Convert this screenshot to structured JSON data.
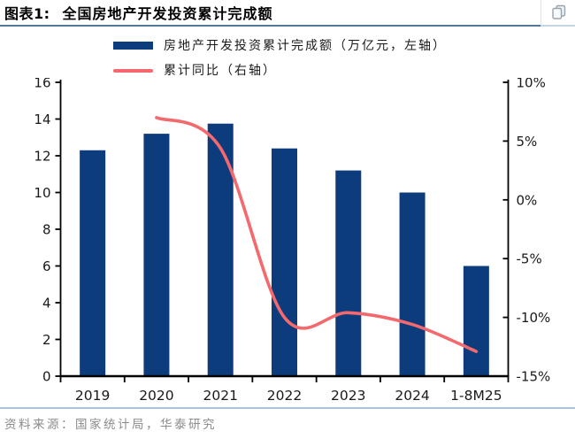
{
  "header": {
    "title_prefix": "图表1:",
    "title": "全国房地产开发投资累计完成额"
  },
  "legend": [
    {
      "type": "bar",
      "label": "房地产开发投资累计完成额（万亿元，左轴）",
      "color": "#0d3c7c"
    },
    {
      "type": "line",
      "label": "累计同比（右轴）",
      "color": "#f4696e"
    }
  ],
  "footer": {
    "source": "资料来源：国家统计局，华泰研究"
  },
  "chart_data": {
    "type": "bar",
    "subtype": "bar+line combo, dual axis",
    "title": "全国房地产开发投资累计完成额",
    "categories": [
      "2019",
      "2020",
      "2021",
      "2022",
      "2023",
      "2024",
      "1-8M25"
    ],
    "series": [
      {
        "name": "房地产开发投资累计完成额（万亿元，左轴）",
        "type": "bar",
        "axis": "left",
        "color": "#0d3c7c",
        "values": [
          12.3,
          13.2,
          13.75,
          12.4,
          11.2,
          10.0,
          6.0
        ]
      },
      {
        "name": "累计同比（右轴）",
        "type": "line",
        "axis": "right",
        "color": "#f4696e",
        "smooth": true,
        "values": [
          null,
          7.0,
          4.4,
          -10.0,
          -9.6,
          -10.6,
          -12.9
        ]
      }
    ],
    "left_axis": {
      "min": 0,
      "max": 16,
      "ticks": [
        0,
        2,
        4,
        6,
        8,
        10,
        12,
        14,
        16
      ],
      "suffix": ""
    },
    "right_axis": {
      "min": -15,
      "max": 10,
      "ticks": [
        10,
        5,
        0,
        -5,
        -10,
        -15
      ],
      "suffix": "%"
    },
    "grid": false,
    "legend_position": "top"
  }
}
